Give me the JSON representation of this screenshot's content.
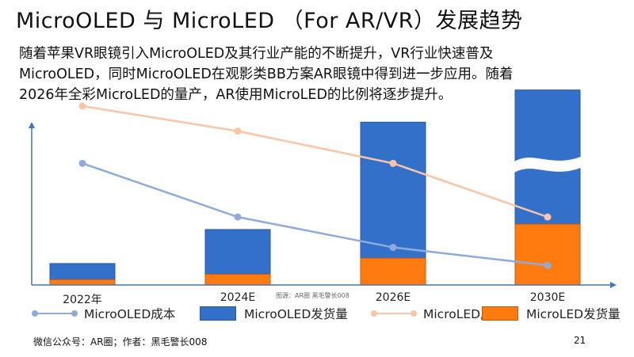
{
  "slide": {
    "title": "MicroOLED 与 MicroLED （For AR/VR）发展趋势",
    "body_lines": [
      "随着苹果VR眼镜引入MicroOLED及其行业产能的不断提升，VR行业快速普及",
      "MicroOLED，同时MicroOLED在观影类BB方案AR眼镜中得到进一步应用。随着",
      "2026年全彩MicroLED的量产，AR使用MicroLED的比例将逐步提升。"
    ],
    "caption": "图源：AR圈 黑毛警长008",
    "footer": "微信公众号：AR圈；作者：黑毛警长008",
    "page_number": "21"
  },
  "colors": {
    "microoled_shipment": "#3370c9",
    "microled_shipment": "#ff7b0f",
    "microoled_cost": "#8faadc",
    "microled_cost": "#f8c5a5",
    "axis": "#4472c4"
  },
  "chart_data": {
    "type": "bar",
    "title": "",
    "xlabel": "",
    "ylabel": "",
    "categories": [
      "2022年",
      "2024E",
      "2026E",
      "2030E"
    ],
    "ylim": [
      0,
      100
    ],
    "axis_break_on_last_category": true,
    "grid": false,
    "legend_position": "bottom",
    "series": [
      {
        "name": "MicroOLED成本",
        "kind": "line",
        "values": [
          68,
          38,
          21,
          11
        ]
      },
      {
        "name": "MicroOLED发货量",
        "kind": "bar-stacked",
        "values": [
          9,
          25,
          76,
          75
        ]
      },
      {
        "name": "MicroLED成本",
        "kind": "line",
        "values": [
          100,
          86,
          68,
          38
        ]
      },
      {
        "name": "MicroLED发货量",
        "kind": "bar-stacked",
        "values": [
          3,
          6,
          15,
          34
        ]
      }
    ]
  }
}
